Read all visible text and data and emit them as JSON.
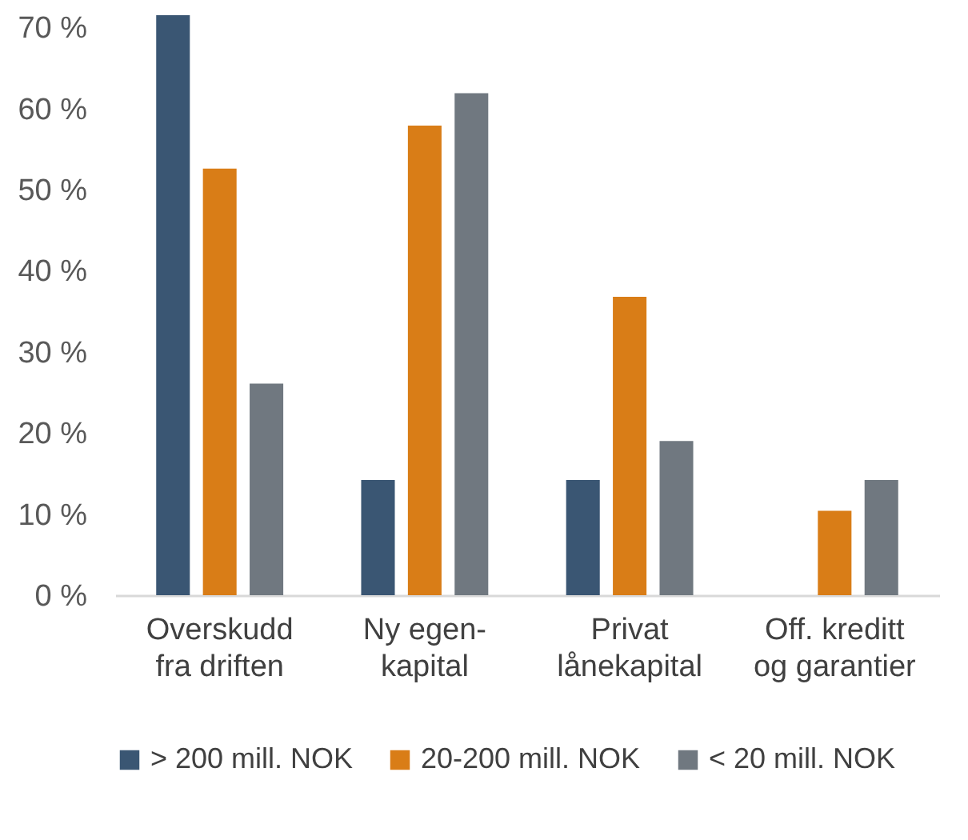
{
  "chart_data": {
    "type": "bar",
    "categories": [
      "Overskudd fra driften",
      "Ny egen-kapital",
      "Privat lånekapital",
      "Off. kreditt og garantier"
    ],
    "series": [
      {
        "name": "> 200 mill. NOK",
        "color": "#3a5673",
        "values": [
          71.5,
          14.2,
          14.2,
          0
        ]
      },
      {
        "name": "20-200 mill. NOK",
        "color": "#d97d17",
        "values": [
          52.6,
          57.9,
          36.8,
          10.4
        ]
      },
      {
        "name": "< 20 mill. NOK",
        "color": "#707880",
        "values": [
          26.1,
          61.9,
          19.0,
          14.2
        ]
      }
    ],
    "ylim": [
      0,
      72
    ],
    "yticks": [
      {
        "value": 0,
        "label": "0 %"
      },
      {
        "value": 10,
        "label": "10 %"
      },
      {
        "value": 20,
        "label": "20 %"
      },
      {
        "value": 30,
        "label": "30 %"
      },
      {
        "value": 40,
        "label": "40 %"
      },
      {
        "value": 50,
        "label": "50 %"
      },
      {
        "value": 60,
        "label": "60 %"
      },
      {
        "value": 70,
        "label": "70 %"
      }
    ],
    "grid": false,
    "legend": "bottom"
  }
}
